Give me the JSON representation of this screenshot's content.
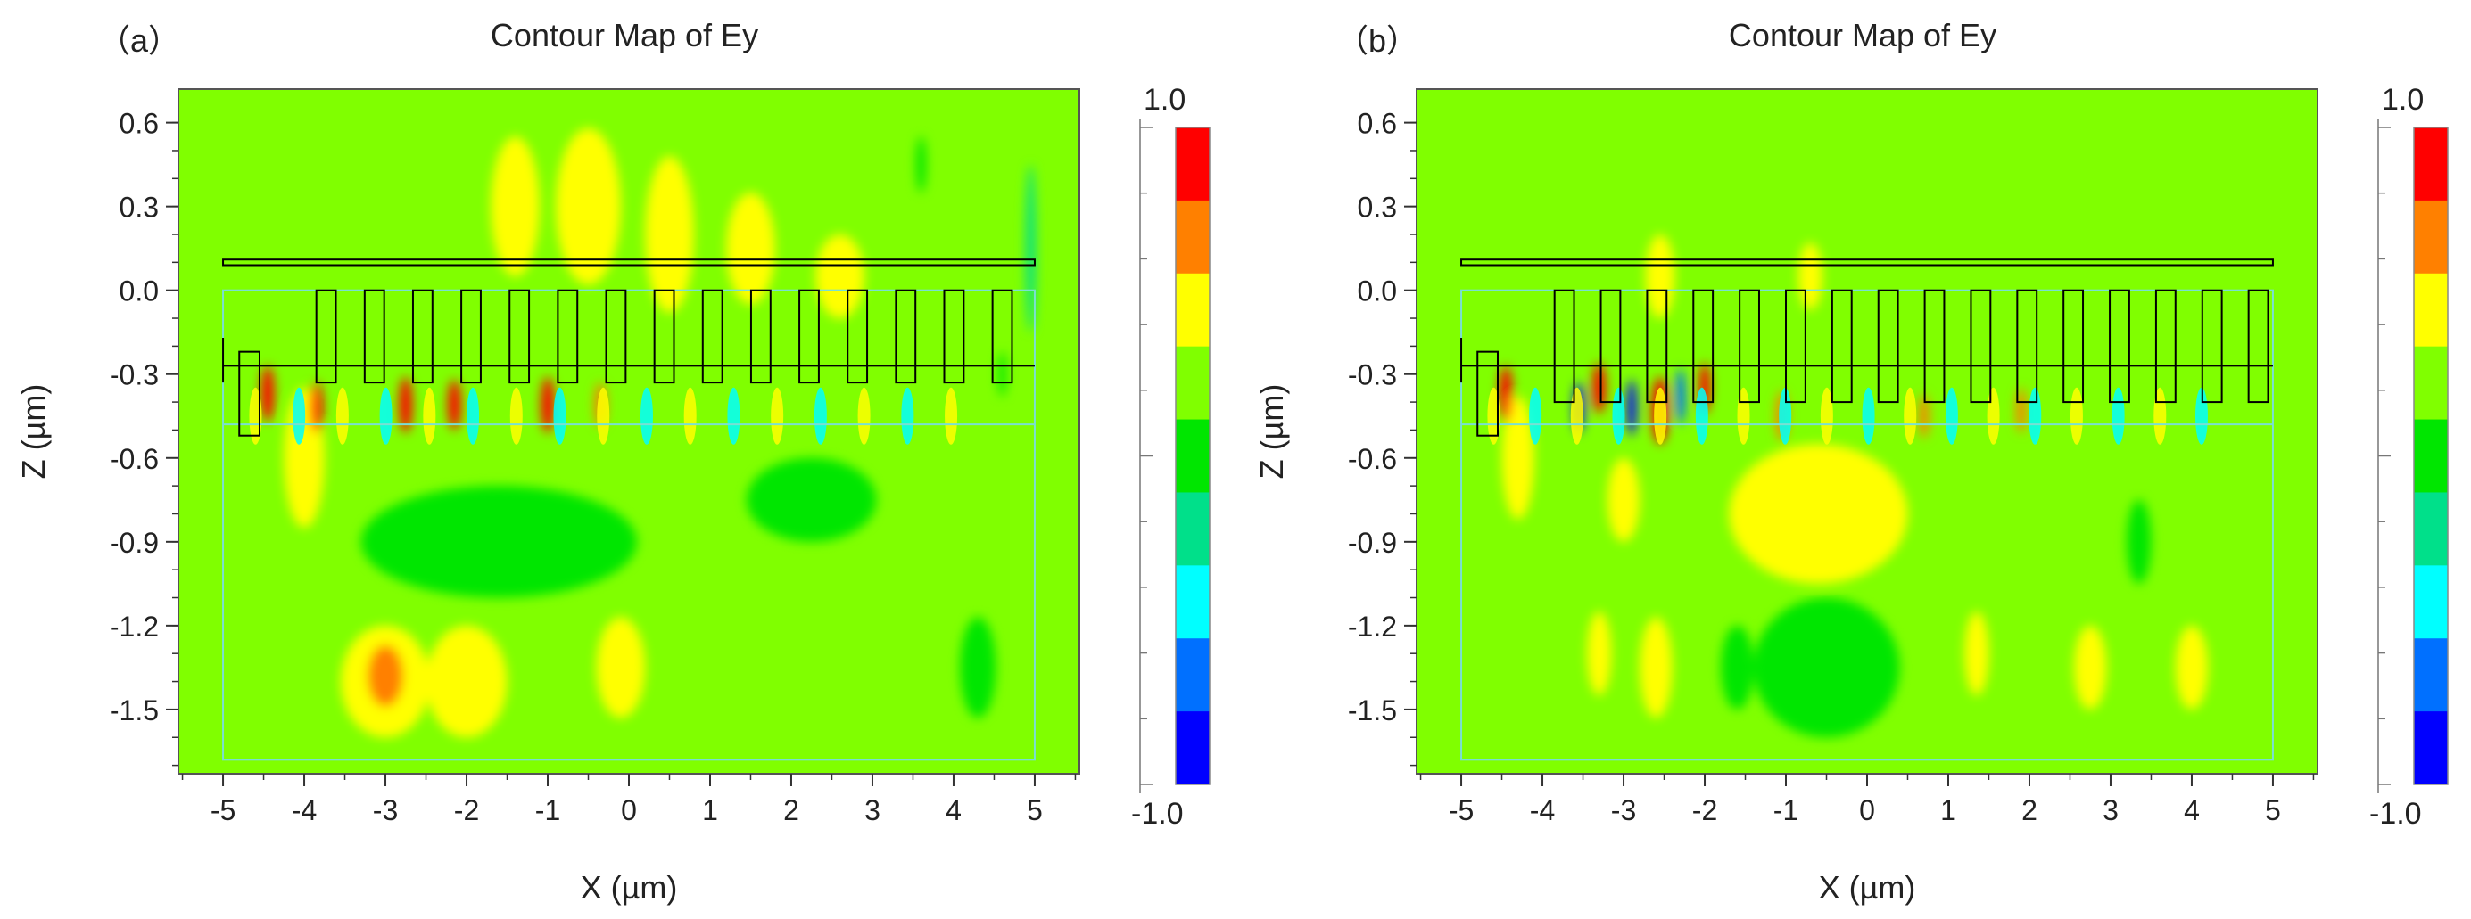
{
  "chart_data": [
    {
      "type": "heatmap",
      "panel_label": "（a）",
      "title": "Contour Map of Ey",
      "xlabel": "X (µm)",
      "ylabel": "Z (µm)",
      "xlim": [
        -5.55,
        5.55
      ],
      "ylim": [
        -1.73,
        0.72
      ],
      "x_ticks": [
        -5,
        -4,
        -3,
        -2,
        -1,
        0,
        1,
        2,
        3,
        4,
        5
      ],
      "y_ticks": [
        "0.6",
        "0.3",
        "0.0",
        "-0.3",
        "-0.6",
        "-0.9",
        "-1.2",
        "-1.5"
      ],
      "colorbar": {
        "min_label": "-1.0",
        "max_label": "1.0",
        "levels": 9
      },
      "grating": {
        "teeth": 15,
        "x_start": -3.85,
        "pitch": 0.595,
        "tooth_width": 0.24,
        "tooth_top": 0.0,
        "tooth_bottom": -0.33
      },
      "dominant_field_level": 5,
      "field_blobs": [
        {
          "x": -4.45,
          "z": -0.37,
          "rx": 0.08,
          "rz": 0.1,
          "level": 8
        },
        {
          "x": -3.85,
          "z": -0.42,
          "rx": 0.08,
          "rz": 0.09,
          "level": 8
        },
        {
          "x": -2.75,
          "z": -0.41,
          "rx": 0.08,
          "rz": 0.1,
          "level": 8
        },
        {
          "x": -2.15,
          "z": -0.41,
          "rx": 0.08,
          "rz": 0.09,
          "level": 8
        },
        {
          "x": -1.0,
          "z": -0.41,
          "rx": 0.08,
          "rz": 0.1,
          "level": 8
        },
        {
          "x": -0.35,
          "z": -0.41,
          "rx": 0.07,
          "rz": 0.08,
          "level": 7
        },
        {
          "x": -3.0,
          "z": -1.38,
          "rx": 0.22,
          "rz": 0.11,
          "level": 7
        },
        {
          "x": 4.6,
          "z": -0.3,
          "rx": 0.05,
          "rz": 0.08,
          "level": 4
        },
        {
          "x": 4.95,
          "z": 0.15,
          "rx": 0.06,
          "rz": 0.3,
          "level": 3
        },
        {
          "x": 3.6,
          "z": 0.45,
          "rx": 0.06,
          "rz": 0.1,
          "level": 4
        },
        {
          "x": -1.6,
          "z": -0.9,
          "rx": 1.7,
          "rz": 0.2,
          "level": 4
        },
        {
          "x": 2.25,
          "z": -0.75,
          "rx": 0.8,
          "rz": 0.15,
          "level": 4
        },
        {
          "x": 4.3,
          "z": -1.35,
          "rx": 0.22,
          "rz": 0.18,
          "level": 4
        },
        {
          "x": -3.0,
          "z": -1.4,
          "rx": 0.55,
          "rz": 0.2,
          "level": 6
        },
        {
          "x": -2.0,
          "z": -1.4,
          "rx": 0.5,
          "rz": 0.2,
          "level": 6
        },
        {
          "x": -0.5,
          "z": 0.3,
          "rx": 0.4,
          "rz": 0.28,
          "level": 6
        },
        {
          "x": -1.4,
          "z": 0.3,
          "rx": 0.3,
          "rz": 0.25,
          "level": 6
        },
        {
          "x": 0.5,
          "z": 0.2,
          "rx": 0.3,
          "rz": 0.28,
          "level": 6
        },
        {
          "x": 1.5,
          "z": 0.15,
          "rx": 0.3,
          "rz": 0.2,
          "level": 6
        },
        {
          "x": 2.6,
          "z": 0.05,
          "rx": 0.3,
          "rz": 0.15,
          "level": 6
        },
        {
          "x": -0.1,
          "z": -1.35,
          "rx": 0.3,
          "rz": 0.18,
          "level": 6
        },
        {
          "x": -4.0,
          "z": -0.6,
          "rx": 0.25,
          "rz": 0.25,
          "level": 6
        }
      ]
    },
    {
      "type": "heatmap",
      "panel_label": "（b）",
      "title": "Contour Map of Ey",
      "xlabel": "X (µm)",
      "ylabel": "Z (µm)",
      "xlim": [
        -5.55,
        5.55
      ],
      "ylim": [
        -1.73,
        0.72
      ],
      "x_ticks": [
        -5,
        -4,
        -3,
        -2,
        -1,
        0,
        1,
        2,
        3,
        4,
        5
      ],
      "y_ticks": [
        "0.6",
        "0.3",
        "0.0",
        "-0.3",
        "-0.6",
        "-0.9",
        "-1.2",
        "-1.5"
      ],
      "colorbar": {
        "min_label": "-1.0",
        "max_label": "1.0",
        "levels": 9
      },
      "grating": {
        "teeth": 16,
        "x_start": -3.85,
        "pitch": 0.57,
        "tooth_width": 0.24,
        "tooth_top": 0.0,
        "tooth_bottom": -0.4
      },
      "dominant_field_level": 5,
      "field_blobs": [
        {
          "x": -4.45,
          "z": -0.37,
          "rx": 0.08,
          "rz": 0.1,
          "level": 8
        },
        {
          "x": -2.55,
          "z": -0.43,
          "rx": 0.1,
          "rz": 0.12,
          "level": 8
        },
        {
          "x": -3.3,
          "z": -0.35,
          "rx": 0.08,
          "rz": 0.09,
          "level": 8
        },
        {
          "x": -2.0,
          "z": -0.35,
          "rx": 0.07,
          "rz": 0.09,
          "level": 8
        },
        {
          "x": -3.55,
          "z": -0.42,
          "rx": 0.06,
          "rz": 0.09,
          "level": 0
        },
        {
          "x": -2.9,
          "z": -0.42,
          "rx": 0.06,
          "rz": 0.1,
          "level": 0
        },
        {
          "x": -2.3,
          "z": -0.38,
          "rx": 0.06,
          "rz": 0.1,
          "level": 1
        },
        {
          "x": -1.05,
          "z": -0.45,
          "rx": 0.07,
          "rz": 0.09,
          "level": 7
        },
        {
          "x": 0.7,
          "z": -0.45,
          "rx": 0.06,
          "rz": 0.08,
          "level": 7
        },
        {
          "x": 1.9,
          "z": -0.43,
          "rx": 0.06,
          "rz": 0.08,
          "level": 7
        },
        {
          "x": -0.6,
          "z": -0.8,
          "rx": 1.1,
          "rz": 0.25,
          "level": 6
        },
        {
          "x": -3.0,
          "z": -0.75,
          "rx": 0.2,
          "rz": 0.15,
          "level": 6
        },
        {
          "x": -0.5,
          "z": -1.35,
          "rx": 0.9,
          "rz": 0.25,
          "level": 4
        },
        {
          "x": -2.6,
          "z": -1.35,
          "rx": 0.2,
          "rz": 0.18,
          "level": 6
        },
        {
          "x": -3.3,
          "z": -1.3,
          "rx": 0.15,
          "rz": 0.15,
          "level": 6
        },
        {
          "x": -1.6,
          "z": -1.35,
          "rx": 0.2,
          "rz": 0.15,
          "level": 4
        },
        {
          "x": 2.75,
          "z": -1.35,
          "rx": 0.2,
          "rz": 0.15,
          "level": 6
        },
        {
          "x": 4.0,
          "z": -1.35,
          "rx": 0.2,
          "rz": 0.15,
          "level": 6
        },
        {
          "x": 1.35,
          "z": -1.3,
          "rx": 0.15,
          "rz": 0.15,
          "level": 6
        },
        {
          "x": 3.35,
          "z": -0.9,
          "rx": 0.15,
          "rz": 0.15,
          "level": 4
        },
        {
          "x": -2.55,
          "z": 0.05,
          "rx": 0.18,
          "rz": 0.15,
          "level": 6
        },
        {
          "x": -0.7,
          "z": 0.05,
          "rx": 0.15,
          "rz": 0.12,
          "level": 6
        },
        {
          "x": -4.3,
          "z": -0.6,
          "rx": 0.2,
          "rz": 0.22,
          "level": 6
        }
      ]
    }
  ],
  "colors": {
    "scale": [
      "#0000ff",
      "#0070ff",
      "#00ffff",
      "#00e08a",
      "#00e600",
      "#80ff00",
      "#ffff00",
      "#ff8000",
      "#ff0000"
    ],
    "background": "#00e100",
    "outline": "#000000",
    "box": "#7adfd2"
  }
}
